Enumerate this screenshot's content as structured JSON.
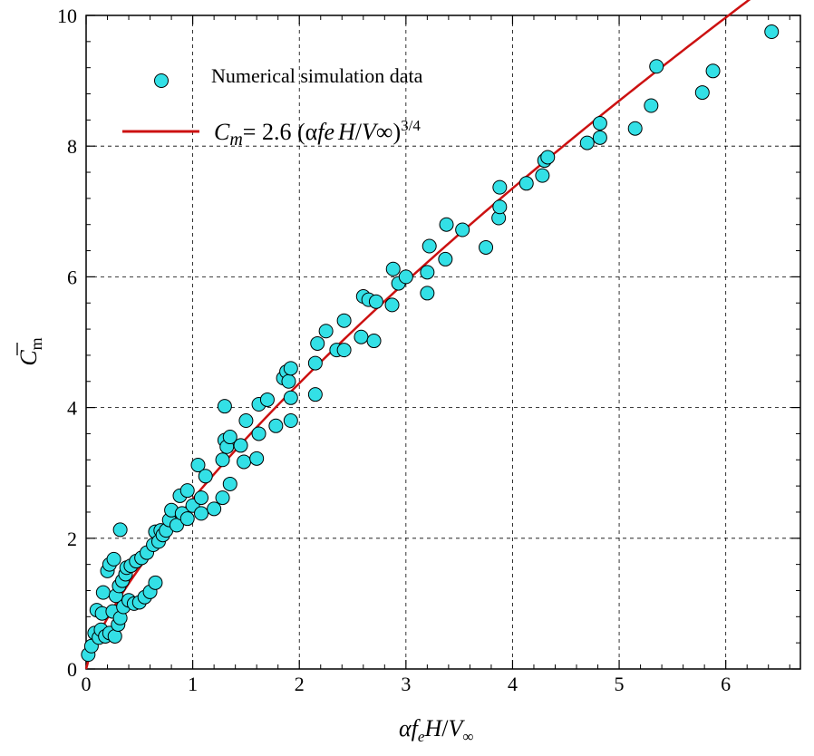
{
  "chart_data": {
    "type": "scatter",
    "xlabel": {
      "alpha": "α",
      "f": "f",
      "e": "e",
      "H": "H",
      "slash": "/",
      "V": "V",
      "inf": "∞"
    },
    "ylabel": {
      "C": "C",
      "sub": "m"
    },
    "xlim": [
      0,
      6.7
    ],
    "ylim": [
      0,
      10
    ],
    "xticks": [
      0,
      1,
      2,
      3,
      4,
      5,
      6
    ],
    "yticks": [
      0,
      2,
      4,
      6,
      8,
      10
    ],
    "legend": {
      "position": "top-left",
      "scatter_label": "Numerical simulation data",
      "line_label": {
        "C": "C",
        "m": "m",
        "rhs": "= 2.6 (α",
        "fe": "fe",
        "H": "H",
        "slash": "/",
        "V": "V",
        "inf": "∞",
        "close": ")",
        "exp": "3/4"
      }
    },
    "colors": {
      "marker_fill": "#33e0e6",
      "marker_edge": "#000000",
      "line": "#cc1111"
    },
    "series": [
      {
        "kind": "scatter",
        "points": [
          [
            0.02,
            0.22
          ],
          [
            0.05,
            0.35
          ],
          [
            0.08,
            0.55
          ],
          [
            0.1,
            0.9
          ],
          [
            0.12,
            0.48
          ],
          [
            0.14,
            0.6
          ],
          [
            0.15,
            0.85
          ],
          [
            0.16,
            1.17
          ],
          [
            0.18,
            0.5
          ],
          [
            0.2,
            1.5
          ],
          [
            0.22,
            1.6
          ],
          [
            0.22,
            0.55
          ],
          [
            0.25,
            0.88
          ],
          [
            0.26,
            1.68
          ],
          [
            0.27,
            0.5
          ],
          [
            0.28,
            1.12
          ],
          [
            0.3,
            0.68
          ],
          [
            0.31,
            1.27
          ],
          [
            0.32,
            2.13
          ],
          [
            0.32,
            0.78
          ],
          [
            0.34,
            1.35
          ],
          [
            0.35,
            0.95
          ],
          [
            0.37,
            1.45
          ],
          [
            0.38,
            1.55
          ],
          [
            0.4,
            1.05
          ],
          [
            0.42,
            1.58
          ],
          [
            0.45,
            1.0
          ],
          [
            0.47,
            1.65
          ],
          [
            0.5,
            1.02
          ],
          [
            0.52,
            1.7
          ],
          [
            0.55,
            1.1
          ],
          [
            0.57,
            1.78
          ],
          [
            0.6,
            1.18
          ],
          [
            0.63,
            1.9
          ],
          [
            0.65,
            1.32
          ],
          [
            0.65,
            2.1
          ],
          [
            0.68,
            1.95
          ],
          [
            0.7,
            2.12
          ],
          [
            0.72,
            2.05
          ],
          [
            0.75,
            2.12
          ],
          [
            0.78,
            2.28
          ],
          [
            0.8,
            2.43
          ],
          [
            0.85,
            2.2
          ],
          [
            0.88,
            2.65
          ],
          [
            0.9,
            2.38
          ],
          [
            0.95,
            2.73
          ],
          [
            0.95,
            2.3
          ],
          [
            1.0,
            2.5
          ],
          [
            1.05,
            3.12
          ],
          [
            1.08,
            2.62
          ],
          [
            1.08,
            2.38
          ],
          [
            1.12,
            2.95
          ],
          [
            1.2,
            2.45
          ],
          [
            1.28,
            2.62
          ],
          [
            1.28,
            3.2
          ],
          [
            1.3,
            3.5
          ],
          [
            1.3,
            4.02
          ],
          [
            1.32,
            3.4
          ],
          [
            1.35,
            2.83
          ],
          [
            1.35,
            3.55
          ],
          [
            1.45,
            3.42
          ],
          [
            1.48,
            3.17
          ],
          [
            1.5,
            3.8
          ],
          [
            1.6,
            3.22
          ],
          [
            1.62,
            3.6
          ],
          [
            1.62,
            4.05
          ],
          [
            1.7,
            4.12
          ],
          [
            1.78,
            3.72
          ],
          [
            1.85,
            4.45
          ],
          [
            1.88,
            4.55
          ],
          [
            1.9,
            4.4
          ],
          [
            1.92,
            3.8
          ],
          [
            1.92,
            4.15
          ],
          [
            1.92,
            4.6
          ],
          [
            2.15,
            4.2
          ],
          [
            2.15,
            4.68
          ],
          [
            2.17,
            4.98
          ],
          [
            2.25,
            5.17
          ],
          [
            2.35,
            4.88
          ],
          [
            2.42,
            4.88
          ],
          [
            2.42,
            5.33
          ],
          [
            2.58,
            5.08
          ],
          [
            2.6,
            5.7
          ],
          [
            2.65,
            5.65
          ],
          [
            2.7,
            5.02
          ],
          [
            2.72,
            5.62
          ],
          [
            2.87,
            5.57
          ],
          [
            2.88,
            6.12
          ],
          [
            2.93,
            5.9
          ],
          [
            3.0,
            6.0
          ],
          [
            3.2,
            5.75
          ],
          [
            3.2,
            6.07
          ],
          [
            3.22,
            6.47
          ],
          [
            3.37,
            6.27
          ],
          [
            3.38,
            6.8
          ],
          [
            3.53,
            6.72
          ],
          [
            3.75,
            6.45
          ],
          [
            3.87,
            6.9
          ],
          [
            3.88,
            7.07
          ],
          [
            3.88,
            7.37
          ],
          [
            4.13,
            7.43
          ],
          [
            4.28,
            7.55
          ],
          [
            4.3,
            7.78
          ],
          [
            4.33,
            7.83
          ],
          [
            4.7,
            8.05
          ],
          [
            4.82,
            8.13
          ],
          [
            4.82,
            8.35
          ],
          [
            5.15,
            8.27
          ],
          [
            5.3,
            8.62
          ],
          [
            5.35,
            9.22
          ],
          [
            5.78,
            8.82
          ],
          [
            5.88,
            9.15
          ],
          [
            6.43,
            9.75
          ]
        ]
      },
      {
        "kind": "line",
        "function": "2.6 * x^0.75",
        "x_range": [
          0,
          6.37
        ]
      }
    ]
  }
}
